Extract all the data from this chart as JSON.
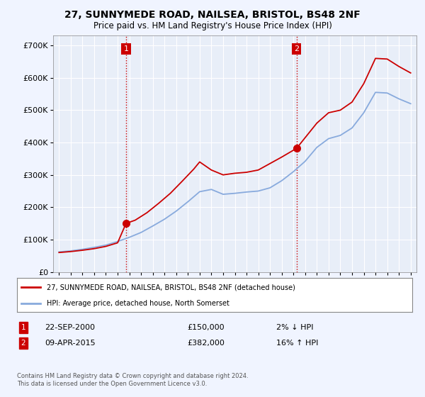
{
  "title": "27, SUNNYMEDE ROAD, NAILSEA, BRISTOL, BS48 2NF",
  "subtitle": "Price paid vs. HM Land Registry's House Price Index (HPI)",
  "ylim": [
    0,
    730000
  ],
  "xlim_start": 1994.5,
  "xlim_end": 2025.5,
  "sale1_x": 2000.72,
  "sale1_y": 150000,
  "sale1_date": "22-SEP-2000",
  "sale1_price": "£150,000",
  "sale1_hpi": "2% ↓ HPI",
  "sale2_x": 2015.27,
  "sale2_y": 382000,
  "sale2_date": "09-APR-2015",
  "sale2_price": "£382,000",
  "sale2_hpi": "16% ↑ HPI",
  "vline1_x": 2000.72,
  "vline2_x": 2015.27,
  "line_color_sale": "#cc0000",
  "line_color_hpi": "#88aadd",
  "background_color": "#f0f4ff",
  "plot_bg_color": "#e8eef8",
  "grid_color": "#ffffff",
  "legend_label1": "27, SUNNYMEDE ROAD, NAILSEA, BRISTOL, BS48 2NF (detached house)",
  "legend_label2": "HPI: Average price, detached house, North Somerset",
  "footer": "Contains HM Land Registry data © Crown copyright and database right 2024.\nThis data is licensed under the Open Government Licence v3.0.",
  "annotation_box_color": "#cc0000",
  "years": [
    1995,
    1996,
    1997,
    1998,
    1999,
    2000,
    2001,
    2002,
    2003,
    2004,
    2005,
    2006,
    2007,
    2008,
    2009,
    2010,
    2011,
    2012,
    2013,
    2014,
    2015,
    2016,
    2017,
    2018,
    2019,
    2020,
    2021,
    2022,
    2023,
    2024,
    2025
  ],
  "hpi_values": [
    62000,
    65000,
    70000,
    76000,
    83000,
    94000,
    107000,
    122000,
    142000,
    163000,
    188000,
    217000,
    248000,
    255000,
    240000,
    243000,
    247000,
    250000,
    260000,
    282000,
    310000,
    342000,
    385000,
    412000,
    422000,
    445000,
    492000,
    555000,
    553000,
    535000,
    520000
  ],
  "sale_x": [
    1995.0,
    1996.0,
    1997.0,
    1998.0,
    1999.0,
    2000.0,
    2000.72,
    2001.5,
    2002.5,
    2003.5,
    2004.5,
    2005.5,
    2006.5,
    2007.0,
    2008.0,
    2009.0,
    2010.0,
    2011.0,
    2012.0,
    2013.0,
    2014.0,
    2015.27,
    2016.0,
    2017.0,
    2018.0,
    2019.0,
    2020.0,
    2021.0,
    2022.0,
    2023.0,
    2024.0,
    2025.0
  ],
  "sale_y": [
    60000,
    63000,
    67000,
    72000,
    79000,
    90000,
    150000,
    160000,
    183000,
    212000,
    243000,
    280000,
    318000,
    340000,
    315000,
    300000,
    305000,
    308000,
    315000,
    335000,
    355000,
    382000,
    415000,
    460000,
    492000,
    500000,
    525000,
    582000,
    660000,
    658000,
    635000,
    615000
  ]
}
